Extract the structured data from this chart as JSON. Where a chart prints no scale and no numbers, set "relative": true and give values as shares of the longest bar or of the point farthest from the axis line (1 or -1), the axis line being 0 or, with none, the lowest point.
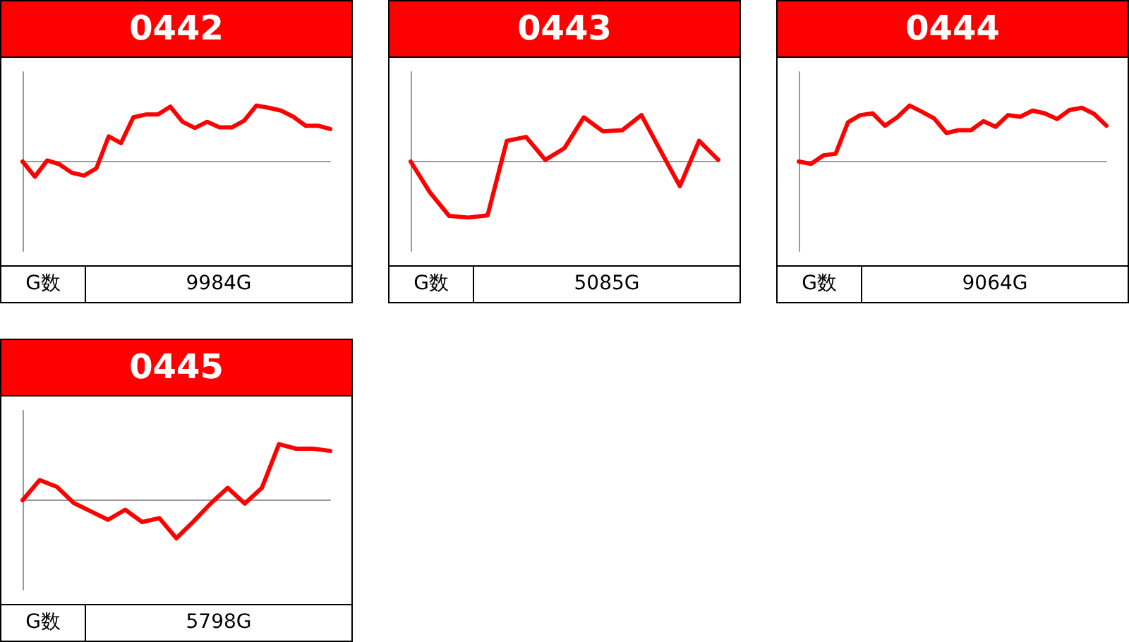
{
  "chart_data": [
    {
      "type": "line",
      "title": "0442",
      "relative": true,
      "grid": false,
      "marker": "none",
      "line_style": "solid",
      "annotations": [
        "G数",
        "9984G"
      ],
      "categories": [
        null,
        null,
        null,
        null,
        null,
        null,
        null,
        null,
        null,
        null,
        null,
        null,
        null,
        null,
        null,
        null,
        null,
        null,
        null,
        null,
        null,
        null,
        null,
        null,
        null,
        null
      ],
      "series": [
        {
          "color": "#ff0000",
          "values": [
            0,
            -0.27,
            0.02,
            -0.05,
            -0.2,
            -0.25,
            -0.12,
            0.45,
            0.33,
            0.79,
            0.84,
            0.84,
            0.98,
            0.71,
            0.6,
            0.71,
            0.61,
            0.61,
            0.73,
            1.0,
            0.96,
            0.91,
            0.8,
            0.64,
            0.64,
            0.58
          ]
        }
      ]
    },
    {
      "type": "line",
      "title": "0443",
      "relative": true,
      "grid": false,
      "marker": "none",
      "line_style": "solid",
      "annotations": [
        "G数",
        "5085G"
      ],
      "categories": [
        null,
        null,
        null,
        null,
        null,
        null,
        null,
        null,
        null,
        null,
        null,
        null,
        null,
        null,
        null,
        null,
        null
      ],
      "series": [
        {
          "color": "#ff0000",
          "values": [
            0,
            -0.55,
            -0.97,
            -1,
            -0.96,
            0.37,
            0.44,
            0.03,
            0.24,
            0.79,
            0.54,
            0.56,
            0.83,
            0.19,
            -0.44,
            0.37,
            0.03
          ]
        }
      ]
    },
    {
      "type": "line",
      "title": "0444",
      "relative": true,
      "grid": false,
      "marker": "none",
      "line_style": "solid",
      "annotations": [
        "G数",
        "9064G"
      ],
      "categories": [
        null,
        null,
        null,
        null,
        null,
        null,
        null,
        null,
        null,
        null,
        null,
        null,
        null,
        null,
        null,
        null,
        null,
        null,
        null,
        null,
        null,
        null,
        null,
        null,
        null,
        null
      ],
      "series": [
        {
          "color": "#ff0000",
          "values": [
            0,
            -0.04,
            0.11,
            0.14,
            0.7,
            0.83,
            0.86,
            0.64,
            0.79,
            1.0,
            0.89,
            0.77,
            0.51,
            0.56,
            0.56,
            0.72,
            0.62,
            0.83,
            0.8,
            0.91,
            0.86,
            0.76,
            0.92,
            0.96,
            0.85,
            0.64
          ]
        }
      ]
    },
    {
      "type": "line",
      "title": "0445",
      "relative": true,
      "grid": false,
      "marker": "none",
      "line_style": "solid",
      "annotations": [
        "G数",
        "5798G"
      ],
      "categories": [
        null,
        null,
        null,
        null,
        null,
        null,
        null,
        null,
        null,
        null,
        null,
        null,
        null,
        null,
        null,
        null,
        null,
        null,
        null
      ],
      "series": [
        {
          "color": "#ff0000",
          "values": [
            0,
            0.36,
            0.24,
            -0.05,
            -0.2,
            -0.35,
            -0.17,
            -0.39,
            -0.32,
            -0.68,
            -0.38,
            -0.06,
            0.22,
            -0.06,
            0.22,
            1.0,
            0.92,
            0.92,
            0.88
          ]
        }
      ]
    }
  ]
}
